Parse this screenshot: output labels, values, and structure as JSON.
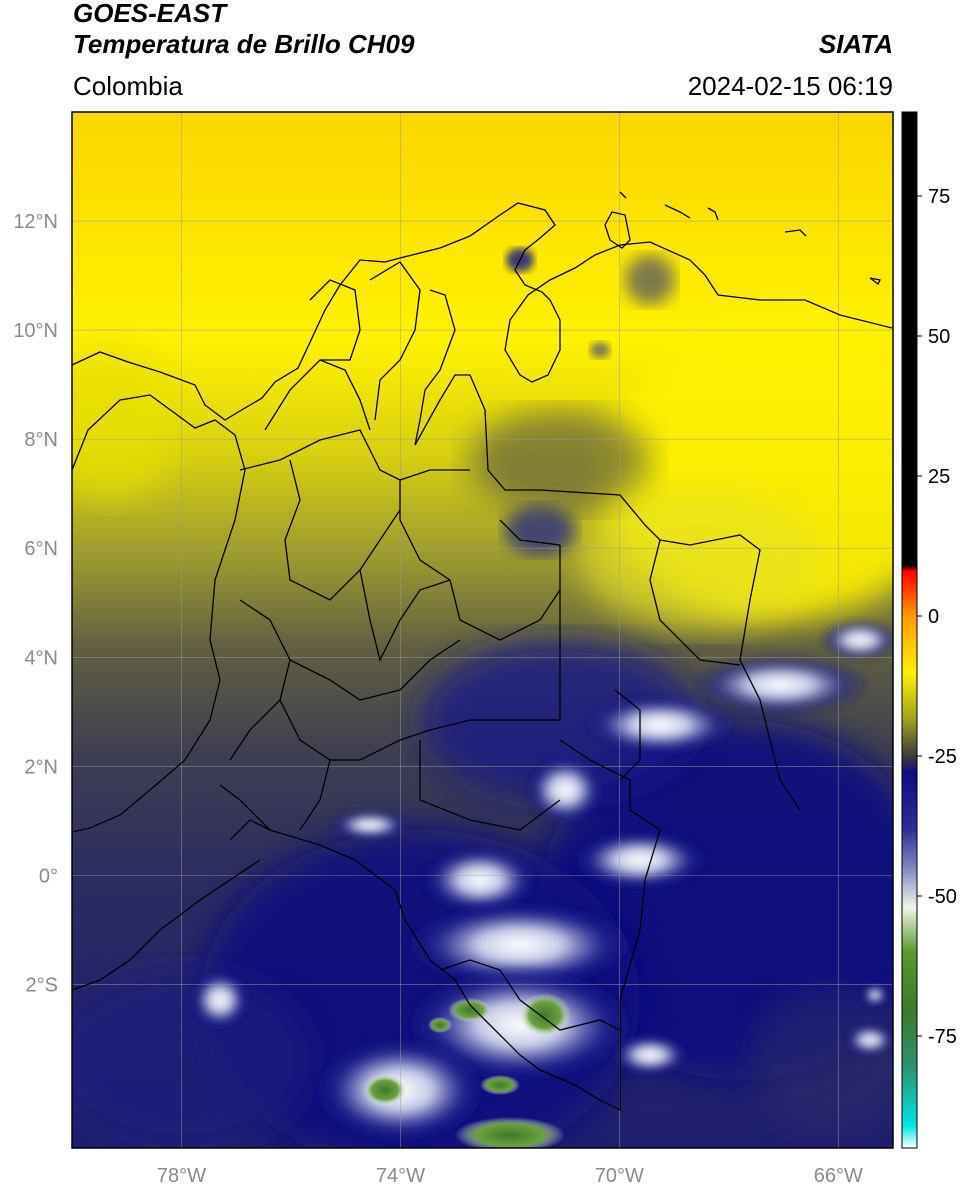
{
  "header": {
    "satellite": "GOES-EAST",
    "product": "Temperatura de Brillo CH09",
    "region": "Colombia",
    "organization": "SIATA",
    "datetime": "2024-02-15 06:19"
  },
  "map": {
    "lon_range": [
      -80,
      -65
    ],
    "lat_range": [
      -5,
      14
    ],
    "lat_ticks": [
      {
        "value": 12,
        "label": "12°N"
      },
      {
        "value": 10,
        "label": "10°N"
      },
      {
        "value": 8,
        "label": "8°N"
      },
      {
        "value": 6,
        "label": "6°N"
      },
      {
        "value": 4,
        "label": "4°N"
      },
      {
        "value": 2,
        "label": "2°N"
      },
      {
        "value": 0,
        "label": "0°"
      },
      {
        "value": -2,
        "label": "2°S"
      }
    ],
    "lon_ticks": [
      {
        "value": -78,
        "label": "78°W"
      },
      {
        "value": -74,
        "label": "74°W"
      },
      {
        "value": -70,
        "label": "70°W"
      },
      {
        "value": -66,
        "label": "66°W"
      }
    ],
    "gridlines": true
  },
  "colorbar": {
    "range": [
      -95,
      90
    ],
    "ticks": [
      {
        "value": 75,
        "label": "75"
      },
      {
        "value": 50,
        "label": "50"
      },
      {
        "value": 25,
        "label": "25"
      },
      {
        "value": 0,
        "label": "0"
      },
      {
        "value": -25,
        "label": "-25"
      },
      {
        "value": -50,
        "label": "-50"
      },
      {
        "value": -75,
        "label": "-75"
      }
    ],
    "stops": [
      {
        "value": -95,
        "color": "#ffffff"
      },
      {
        "value": -91,
        "color": "#00e5e5"
      },
      {
        "value": -80,
        "color": "#2f8f6a"
      },
      {
        "value": -70,
        "color": "#3d7a2a"
      },
      {
        "value": -60,
        "color": "#5a9a30"
      },
      {
        "value": -52,
        "color": "#f0f5e8"
      },
      {
        "value": -45,
        "color": "#8088c0"
      },
      {
        "value": -38,
        "color": "#2a2f95"
      },
      {
        "value": -28,
        "color": "#0d0d80"
      },
      {
        "value": -25,
        "color": "#3c3c3c"
      },
      {
        "value": -18,
        "color": "#a6a620"
      },
      {
        "value": -10,
        "color": "#fff200"
      },
      {
        "value": 0,
        "color": "#ff9900"
      },
      {
        "value": 8,
        "color": "#ff0000"
      },
      {
        "value": 9,
        "color": "#000000"
      },
      {
        "value": 90,
        "color": "#000000"
      }
    ]
  }
}
